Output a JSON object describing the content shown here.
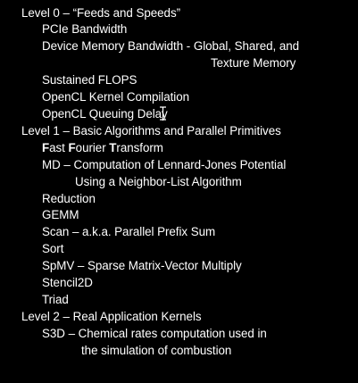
{
  "slide": {
    "level0": {
      "heading": "Level 0 – “Feeds and Speeds”",
      "items": [
        "PCIe Bandwidth",
        "Device Memory Bandwidth - Global, Shared, and",
        "Texture Memory",
        "Sustained FLOPS",
        "OpenCL Kernel Compilation",
        "OpenCL Queuing Delay"
      ]
    },
    "level1": {
      "heading": "Level 1 – Basic Algorithms and Parallel Primitives",
      "fft": {
        "f1": "F",
        "ast": "ast ",
        "f2": "F",
        "ourier": "ourier ",
        "t": "T",
        "ransform": "ransform"
      },
      "items": [
        "MD – Computation of Lennard-Jones Potential",
        "Using a Neighbor-List Algorithm",
        "Reduction",
        "GEMM",
        "Scan – a.k.a. Parallel Prefix Sum",
        "Sort",
        "SpMV – Sparse Matrix-Vector Multiply",
        "Stencil2D",
        "Triad"
      ]
    },
    "level2": {
      "heading": "Level 2 – Real Application Kernels",
      "items": [
        "S3D – Chemical rates computation used in",
        "the simulation of combustion"
      ]
    }
  }
}
